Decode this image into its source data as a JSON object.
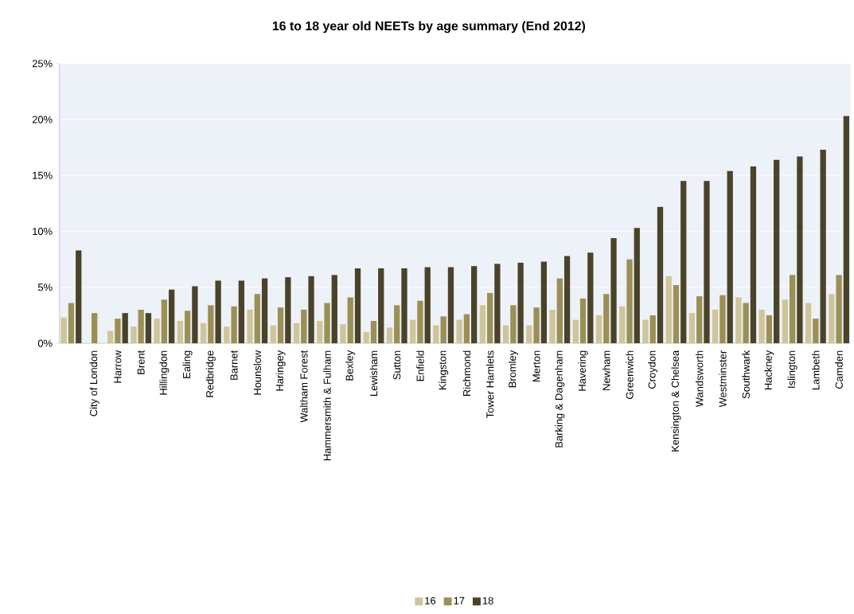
{
  "chart_data": {
    "type": "bar",
    "title": "16 to 18 year old NEETs by age summary (End 2012)",
    "categories": [
      null,
      "City of London",
      "Harrow",
      "Brent",
      "Hillingdon",
      "Ealing",
      "Redbridge",
      "Barnet",
      "Hounslow",
      "Haringey",
      "Waltham Forest",
      "Hammersmith & Fulham",
      "Bexley",
      "Lewisham",
      "Sutton",
      "Enfield",
      "Kingston",
      "Richmond",
      "Tower Hamlets",
      "Bromley",
      "Merton",
      "Barking & Dagenham",
      "Havering",
      "Newham",
      "Greenwich",
      "Croydon",
      "Kensington & Chelsea",
      "Wandsworth",
      "Westminster",
      "Southwark",
      "Hackney",
      "Islington",
      "Lambeth",
      "Camden"
    ],
    "series": [
      {
        "name": "16",
        "color": "#cfc59a",
        "values": [
          2.3,
          null,
          1.1,
          1.5,
          2.2,
          2.0,
          1.8,
          1.5,
          3.0,
          1.6,
          1.8,
          2.0,
          1.7,
          1.0,
          1.4,
          2.1,
          1.6,
          2.1,
          3.4,
          1.6,
          1.6,
          3.0,
          2.1,
          2.5,
          3.3,
          2.1,
          6.0,
          2.7,
          3.0,
          4.1,
          3.0,
          3.9,
          3.6,
          4.4
        ]
      },
      {
        "name": "17",
        "color": "#9b8f55",
        "values": [
          3.6,
          2.7,
          2.2,
          3.0,
          3.9,
          2.9,
          3.4,
          3.3,
          4.4,
          3.2,
          3.0,
          3.6,
          4.1,
          2.0,
          3.4,
          3.8,
          2.4,
          2.6,
          4.5,
          3.4,
          3.2,
          5.8,
          4.0,
          4.4,
          7.5,
          2.5,
          5.2,
          4.2,
          4.3,
          3.6,
          2.5,
          6.1,
          2.2,
          6.1
        ]
      },
      {
        "name": "18",
        "color": "#4a4329",
        "values": [
          8.3,
          null,
          2.7,
          2.7,
          4.8,
          5.1,
          5.6,
          5.6,
          5.8,
          5.9,
          6.0,
          6.1,
          6.7,
          6.7,
          6.7,
          6.8,
          6.8,
          6.9,
          7.1,
          7.2,
          7.3,
          7.8,
          8.1,
          9.4,
          10.3,
          12.2,
          14.5,
          14.5,
          15.4,
          15.8,
          16.4,
          16.7,
          17.3,
          20.3
        ]
      }
    ],
    "ylim": [
      0,
      25
    ],
    "yticks": [
      {
        "value": 0,
        "label": "0%"
      },
      {
        "value": 5,
        "label": "5%"
      },
      {
        "value": 10,
        "label": "10%"
      },
      {
        "value": 15,
        "label": "15%"
      },
      {
        "value": 20,
        "label": "20%"
      },
      {
        "value": 25,
        "label": "25%"
      }
    ],
    "grid": "y",
    "legend": "bottom"
  }
}
